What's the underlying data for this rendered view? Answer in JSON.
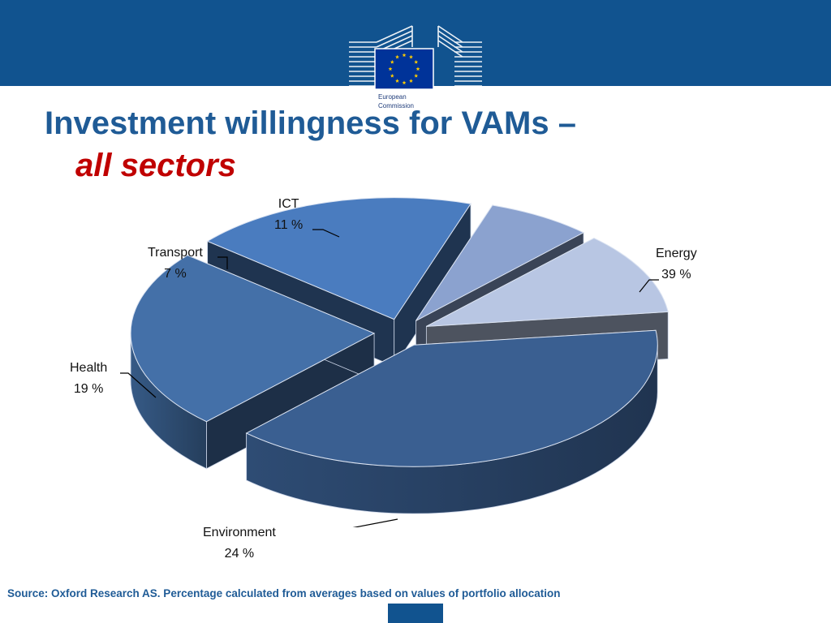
{
  "header": {
    "logo_line1": "European",
    "logo_line2": "Commission",
    "colors": {
      "band": "#11538f",
      "flag": "#003399",
      "stars": "#ffcc00"
    }
  },
  "slide": {
    "title": "Investment willingness for VAMs –",
    "subtitle": "all sectors",
    "source": "Source: Oxford Research AS. Percentage calculated from averages based on values of portfolio allocation"
  },
  "chart_data": {
    "type": "pie",
    "style": "3d-exploded",
    "slices": [
      {
        "name": "Energy",
        "value": 39,
        "pct_label": "39 %",
        "color": "#3a5f91"
      },
      {
        "name": "Environment",
        "value": 24,
        "pct_label": "24 %",
        "color": "#4470a8"
      },
      {
        "name": "Health",
        "value": 19,
        "pct_label": "19 %",
        "color": "#4a7cbf"
      },
      {
        "name": "Transport",
        "value": 7,
        "pct_label": "7 %",
        "color": "#8ba2cf"
      },
      {
        "name": "ICT",
        "value": 11,
        "pct_label": "11 %",
        "color": "#b8c6e3"
      }
    ]
  }
}
